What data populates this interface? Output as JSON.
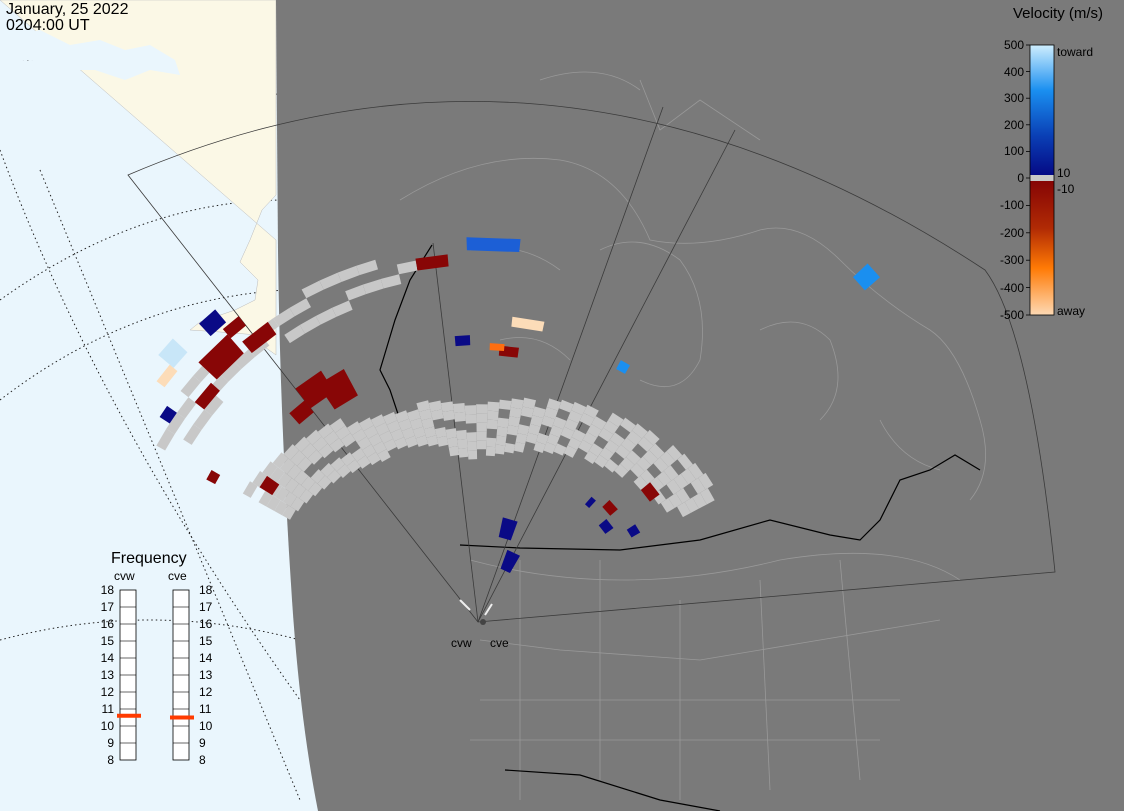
{
  "header": {
    "date": "January, 25 2022",
    "time": "0204:00 UT"
  },
  "colorbar": {
    "title": "Velocity (m/s)",
    "ticks": [
      "500",
      "400",
      "300",
      "200",
      "100",
      "0",
      "-100",
      "-200",
      "-300",
      "-400",
      "-500"
    ],
    "inner_ticks": [
      "10",
      "-10"
    ],
    "toward_label": "toward",
    "away_label": "away",
    "colors": {
      "toward_top": "#cfeefe",
      "toward_bottom": "#050a85",
      "away_top": "#860505",
      "away_bottom": "#fdd9b4",
      "ground_scatter": "#c8c8c8"
    }
  },
  "radars": {
    "cvw": "cvw",
    "cve": "cve"
  },
  "frequency": {
    "title": "Frequency",
    "scale": [
      "18",
      "17",
      "16",
      "15",
      "14",
      "13",
      "12",
      "11",
      "10",
      "9",
      "8"
    ],
    "columns": [
      {
        "id": "cvw",
        "label": "cvw",
        "value_mhz": 10.6
      },
      {
        "id": "cve",
        "label": "cve",
        "value_mhz": 10.5
      }
    ],
    "marker_color": "#ff3b00"
  },
  "map": {
    "ocean_color": "#eaf6fd",
    "land_color": "#fbf8e6",
    "night_color": "#7a7a7a",
    "boundary_color": "#999999",
    "border_color": "#000000"
  }
}
